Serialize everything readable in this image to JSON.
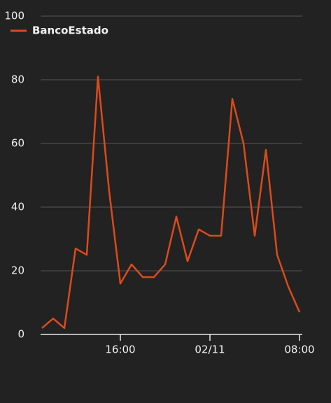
{
  "chart_data": {
    "type": "line",
    "categories": [
      null,
      null,
      null,
      null,
      null,
      null,
      null,
      "16:00",
      null,
      null,
      null,
      null,
      null,
      null,
      null,
      "02/11",
      null,
      null,
      null,
      null,
      null,
      null,
      null,
      "08:00"
    ],
    "series": [
      {
        "name": "BancoEstado",
        "color": "#dc4a1c",
        "values": [
          2,
          5,
          2,
          27,
          25,
          81,
          45,
          16,
          22,
          18,
          18,
          22,
          37,
          23,
          33,
          31,
          31,
          74,
          60,
          31,
          58,
          25,
          15,
          7
        ]
      }
    ],
    "ylim": [
      0,
      100
    ],
    "yticks": [
      0,
      20,
      40,
      60,
      80,
      100
    ],
    "grid": true,
    "legend": "top-left"
  }
}
